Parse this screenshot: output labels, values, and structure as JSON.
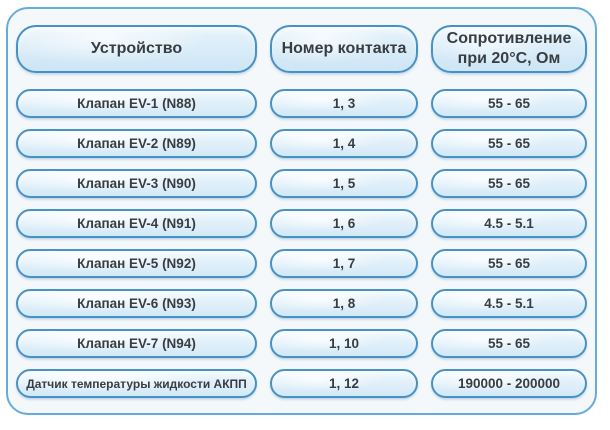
{
  "chart_data": {
    "type": "table",
    "title": "",
    "columns": [
      "Устройство",
      "Номер контакта",
      "Сопротивление при 20°C, Ом"
    ],
    "rows": [
      [
        "Клапан EV-1 (N88)",
        "1, 3",
        "55 - 65"
      ],
      [
        "Клапан EV-2 (N89)",
        "1, 4",
        "55 - 65"
      ],
      [
        "Клапан EV-3 (N90)",
        "1, 5",
        "55 - 65"
      ],
      [
        "Клапан EV-4 (N91)",
        "1, 6",
        "4.5 - 5.1"
      ],
      [
        "Клапан EV-5 (N92)",
        "1, 7",
        "55 - 65"
      ],
      [
        "Клапан EV-6 (N93)",
        "1, 8",
        "4.5 - 5.1"
      ],
      [
        "Клапан EV-7 (N94)",
        "1, 10",
        "55 - 65"
      ],
      [
        "Датчик температуры жидкости АКПП",
        "1, 12",
        "190000 - 200000"
      ]
    ]
  },
  "colors": {
    "page_bg": "#ffffff",
    "card_border": "#65acdb",
    "card_bg": "#f5f8fa",
    "pill_border": "#4792c5",
    "pill_bg_top": "#ecf6fc",
    "pill_bg_bottom": "#d3e9f7",
    "header_bg_top": "#e6f3fb",
    "header_bg_bottom": "#cde5f5",
    "text": "#383d42"
  }
}
